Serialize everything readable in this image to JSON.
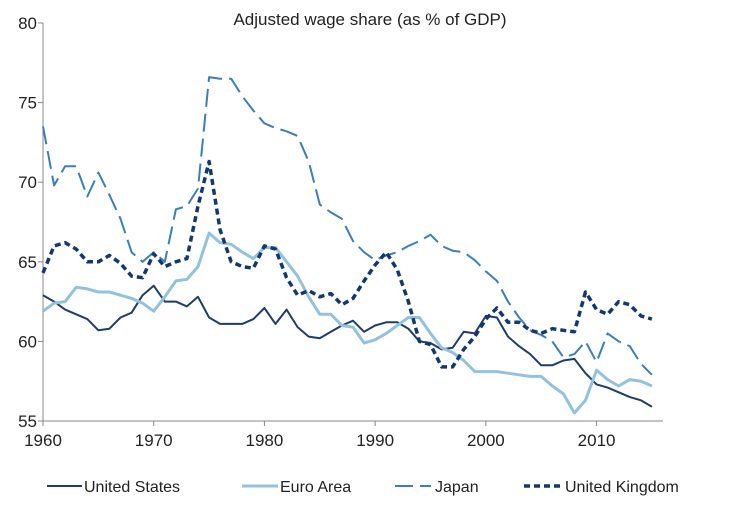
{
  "chart_data": {
    "type": "line",
    "title": "Adjusted wage share (as % of GDP)",
    "xlabel": "",
    "ylabel": "",
    "xlim": [
      1960,
      2016
    ],
    "ylim": [
      55,
      80
    ],
    "x_ticks": [
      "1960",
      "1970",
      "1980",
      "1990",
      "2000",
      "2010"
    ],
    "y_ticks": [
      "55",
      "60",
      "65",
      "70",
      "75",
      "80"
    ],
    "grid": false,
    "legend_position": "bottom",
    "x": [
      1960,
      1961,
      1962,
      1963,
      1964,
      1965,
      1966,
      1967,
      1968,
      1969,
      1970,
      1971,
      1972,
      1973,
      1974,
      1975,
      1976,
      1977,
      1978,
      1979,
      1980,
      1981,
      1982,
      1983,
      1984,
      1985,
      1986,
      1987,
      1988,
      1989,
      1990,
      1991,
      1992,
      1993,
      1994,
      1995,
      1996,
      1997,
      1998,
      1999,
      2000,
      2001,
      2002,
      2003,
      2004,
      2005,
      2006,
      2007,
      2008,
      2009,
      2010,
      2011,
      2012,
      2013,
      2014,
      2015
    ],
    "series": [
      {
        "name": "United States",
        "color": "#1f3d6b",
        "dash": "solid",
        "width": 2,
        "values": [
          62.9,
          62.5,
          62.0,
          61.7,
          61.4,
          60.7,
          60.8,
          61.5,
          61.8,
          62.9,
          63.5,
          62.5,
          62.5,
          62.2,
          62.8,
          61.5,
          61.1,
          61.1,
          61.1,
          61.4,
          62.1,
          61.1,
          62.0,
          60.9,
          60.3,
          60.2,
          60.6,
          61.0,
          61.3,
          60.6,
          61.0,
          61.2,
          61.2,
          60.8,
          60.0,
          59.9,
          59.5,
          59.6,
          60.6,
          60.5,
          61.6,
          61.5,
          60.3,
          59.7,
          59.2,
          58.5,
          58.5,
          58.8,
          58.9,
          58.0,
          57.3,
          57.1,
          56.8,
          56.5,
          56.3,
          55.9
        ]
      },
      {
        "name": "Euro Area",
        "color": "#93c2df",
        "dash": "solid",
        "width": 3,
        "values": [
          61.9,
          62.4,
          62.5,
          63.4,
          63.3,
          63.1,
          63.1,
          62.9,
          62.7,
          62.4,
          61.9,
          62.8,
          63.8,
          63.9,
          64.7,
          66.8,
          66.2,
          66.1,
          65.6,
          65.2,
          65.9,
          65.9,
          65.0,
          64.1,
          62.8,
          61.7,
          61.7,
          61.0,
          60.9,
          59.9,
          60.1,
          60.5,
          61.0,
          61.5,
          61.5,
          60.5,
          59.6,
          59.3,
          58.8,
          58.1,
          58.1,
          58.1,
          58.0,
          57.9,
          57.8,
          57.8,
          57.2,
          56.7,
          55.5,
          56.3,
          58.2,
          57.6,
          57.2,
          57.6,
          57.5,
          57.2
        ]
      },
      {
        "name": "Japan",
        "color": "#3a7fbc",
        "dash": "longdash",
        "width": 2,
        "values": [
          73.5,
          69.8,
          71.0,
          71.0,
          69.1,
          70.6,
          69.2,
          67.7,
          65.6,
          65.0,
          65.6,
          65.0,
          68.3,
          68.5,
          69.6,
          76.6,
          76.5,
          76.5,
          75.4,
          74.5,
          73.7,
          73.4,
          73.2,
          72.9,
          71.3,
          68.6,
          68.1,
          67.7,
          66.3,
          65.6,
          65.1,
          65.4,
          65.6,
          66.0,
          66.3,
          66.7,
          66.0,
          65.7,
          65.6,
          65.1,
          64.4,
          63.8,
          62.5,
          61.5,
          60.7,
          60.4,
          60.0,
          59.0,
          59.2,
          60.0,
          58.7,
          60.5,
          60.0,
          59.7,
          58.6,
          57.9
        ]
      },
      {
        "name": "United Kingdom",
        "color": "#13386e",
        "dash": "shortdash",
        "width": 3.5,
        "values": [
          64.3,
          66.0,
          66.2,
          65.8,
          65.0,
          65.0,
          65.4,
          64.9,
          64.1,
          64.0,
          65.5,
          64.7,
          65.0,
          65.2,
          68.5,
          71.3,
          67.0,
          65.0,
          64.7,
          64.6,
          66.0,
          65.8,
          64.0,
          62.9,
          63.2,
          62.8,
          63.0,
          62.3,
          62.7,
          63.8,
          64.8,
          65.6,
          64.5,
          62.5,
          60.0,
          59.8,
          58.4,
          58.4,
          59.5,
          60.3,
          61.4,
          62.1,
          61.2,
          61.2,
          60.7,
          60.5,
          60.8,
          60.7,
          60.6,
          63.1,
          62.0,
          61.7,
          62.5,
          62.3,
          61.6,
          61.4
        ]
      }
    ]
  }
}
